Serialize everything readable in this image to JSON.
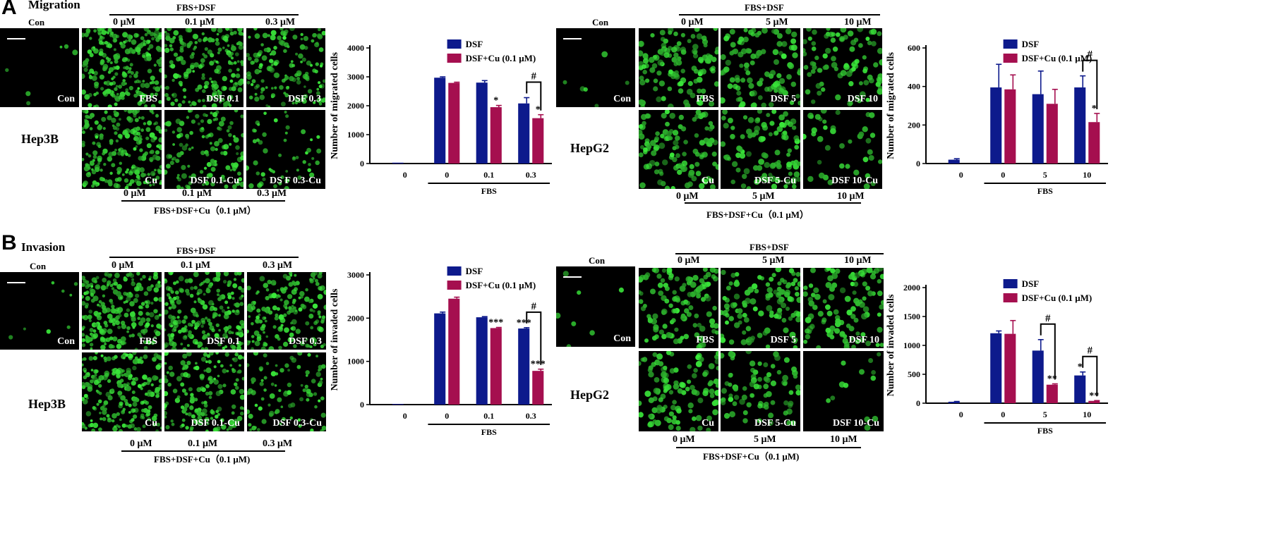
{
  "panels": {
    "A": {
      "letter": "A",
      "title": "Migration"
    },
    "B": {
      "letter": "B",
      "title": "Invasion"
    }
  },
  "labels": {
    "con": "Con",
    "fbs_dsf": "FBS+DSF",
    "fbs_dsf_cu": "FBS+DSF+Cu（0.1 μM）",
    "fbs_dsf_cu_alt": "FBS+DSF+Cu（0.1 μM)",
    "hep3b": "Hep3B",
    "hepg2": "HepG2"
  },
  "hep3b_doses": [
    "0 μM",
    "0.1 μM",
    "0.3 μM"
  ],
  "hepg2_doses": [
    "0 μM",
    "5 μM",
    "10 μM"
  ],
  "image_tags": {
    "A_hep3b_top": [
      "FBS",
      "DSF  0.1",
      "DSF  0.3"
    ],
    "A_hep3b_bottom": [
      "Cu",
      "DSF  0.1-Cu",
      "DS F 0.3-Cu"
    ],
    "A_hepg2_top": [
      "FBS",
      "DSF 5",
      "DSF 10"
    ],
    "A_hepg2_bottom": [
      "Cu",
      "DSF 5-Cu",
      "DSF 10-Cu"
    ],
    "B_hep3b_top": [
      "FBS",
      "DSF  0.1",
      "DSF 0.3"
    ],
    "B_hep3b_bottom": [
      "Cu",
      "DSF  0.1-Cu",
      "DSF 0.3-Cu"
    ],
    "B_hepg2_top": [
      "FBS",
      "DSF 5",
      "DSF 10"
    ],
    "B_hepg2_bottom": [
      "Cu",
      "DSF 5-Cu",
      "DSF 10-Cu"
    ]
  },
  "colors": {
    "dsf": "#0d1a8c",
    "dsf_cu": "#a50f4f",
    "cells": "#33c433"
  },
  "chart_data": [
    {
      "id": "chartA1",
      "type": "bar",
      "ylabel": "Number of migrated cells",
      "xgroup_label": "FBS",
      "ylim": [
        0,
        4000
      ],
      "yticks": [
        0,
        1000,
        2000,
        3000,
        4000
      ],
      "categories": [
        "0",
        "0",
        "0.1",
        "0.3"
      ],
      "series": [
        {
          "name": "DSF",
          "values": [
            30,
            2970,
            2800,
            2080
          ],
          "errors": [
            0,
            30,
            70,
            200
          ],
          "stars": [
            "",
            "",
            "",
            ""
          ]
        },
        {
          "name": "DSF+Cu (0.1 μM)",
          "values": [
            null,
            2790,
            1950,
            1570
          ],
          "errors": [
            0,
            25,
            60,
            120
          ],
          "stars": [
            "",
            "",
            "*",
            "*"
          ]
        }
      ],
      "brackets": [
        {
          "category": 3,
          "label": "#"
        }
      ]
    },
    {
      "id": "chartA2",
      "type": "bar",
      "ylabel": "Number of migrated cells",
      "xgroup_label": "FBS",
      "ylim": [
        0,
        600
      ],
      "yticks": [
        0,
        200,
        400,
        600
      ],
      "categories": [
        "0",
        "0",
        "5",
        "10"
      ],
      "series": [
        {
          "name": "DSF",
          "values": [
            20,
            395,
            360,
            395
          ],
          "errors": [
            5,
            120,
            120,
            60
          ],
          "stars": [
            "",
            "",
            "",
            ""
          ]
        },
        {
          "name": "DSF+Cu (0.1 μM)",
          "values": [
            null,
            385,
            310,
            215
          ],
          "errors": [
            0,
            75,
            75,
            45
          ],
          "stars": [
            "",
            "",
            "",
            "*"
          ]
        }
      ],
      "brackets": [
        {
          "category": 3,
          "label": "#"
        }
      ]
    },
    {
      "id": "chartB1",
      "type": "bar",
      "ylabel": "Number of invaded cells",
      "xgroup_label": "FBS",
      "ylim": [
        0,
        3000
      ],
      "yticks": [
        0,
        1000,
        2000,
        3000
      ],
      "categories": [
        "0",
        "0",
        "0.1",
        "0.3"
      ],
      "series": [
        {
          "name": "DSF",
          "values": [
            15,
            2110,
            2020,
            1760
          ],
          "errors": [
            0,
            30,
            15,
            20
          ],
          "stars": [
            "",
            "",
            "",
            "***"
          ]
        },
        {
          "name": "DSF+Cu (0.1 μM)",
          "values": [
            null,
            2450,
            1770,
            780
          ],
          "errors": [
            0,
            35,
            15,
            40
          ],
          "stars": [
            "",
            "",
            "***",
            "***"
          ]
        }
      ],
      "brackets": [
        {
          "category": 3,
          "label": "#"
        }
      ]
    },
    {
      "id": "chartB2",
      "type": "bar",
      "ylabel": "Number of invaded cells",
      "xgroup_label": "FBS",
      "ylim": [
        0,
        2000
      ],
      "yticks": [
        0,
        500,
        1000,
        1500,
        2000
      ],
      "categories": [
        "0",
        "0",
        "5",
        "10"
      ],
      "series": [
        {
          "name": "DSF",
          "values": [
            25,
            1210,
            910,
            480
          ],
          "errors": [
            5,
            40,
            190,
            60
          ],
          "stars": [
            "",
            "",
            "",
            "*"
          ]
        },
        {
          "name": "DSF+Cu (0.1 μM)",
          "values": [
            null,
            1200,
            320,
            40
          ],
          "errors": [
            0,
            230,
            15,
            5
          ],
          "stars": [
            "",
            "",
            "**",
            "**"
          ]
        }
      ],
      "brackets": [
        {
          "category": 2,
          "label": "#"
        },
        {
          "category": 3,
          "label": "#"
        }
      ]
    }
  ]
}
